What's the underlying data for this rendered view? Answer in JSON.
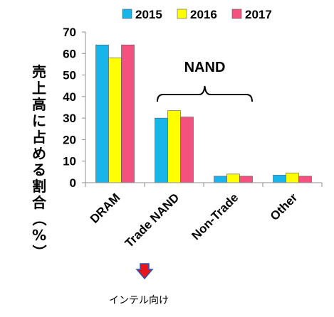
{
  "chart_data": {
    "type": "bar",
    "categories": [
      "DRAM",
      "Trade NAND",
      "Non-Trade",
      "Other"
    ],
    "series": [
      {
        "name": "2015",
        "color": "#18b4ec",
        "values": [
          64,
          30,
          3,
          3.5
        ]
      },
      {
        "name": "2016",
        "color": "#ffff00",
        "values": [
          58,
          33.5,
          4,
          4.5
        ]
      },
      {
        "name": "2017",
        "color": "#f4517f",
        "values": [
          64,
          30.5,
          3,
          3
        ]
      }
    ],
    "ylabel": "売上高に占める割合（%）",
    "ylim": [
      0,
      70
    ],
    "yticks": [
      0,
      10,
      20,
      30,
      40,
      50,
      60,
      70
    ],
    "grid": false,
    "legend_position": "top",
    "annotations": {
      "brace_label": "NAND",
      "below_label": "インテル向け",
      "arrow_color": "#e8151b",
      "arrow_outline": "#2a56b4"
    }
  }
}
